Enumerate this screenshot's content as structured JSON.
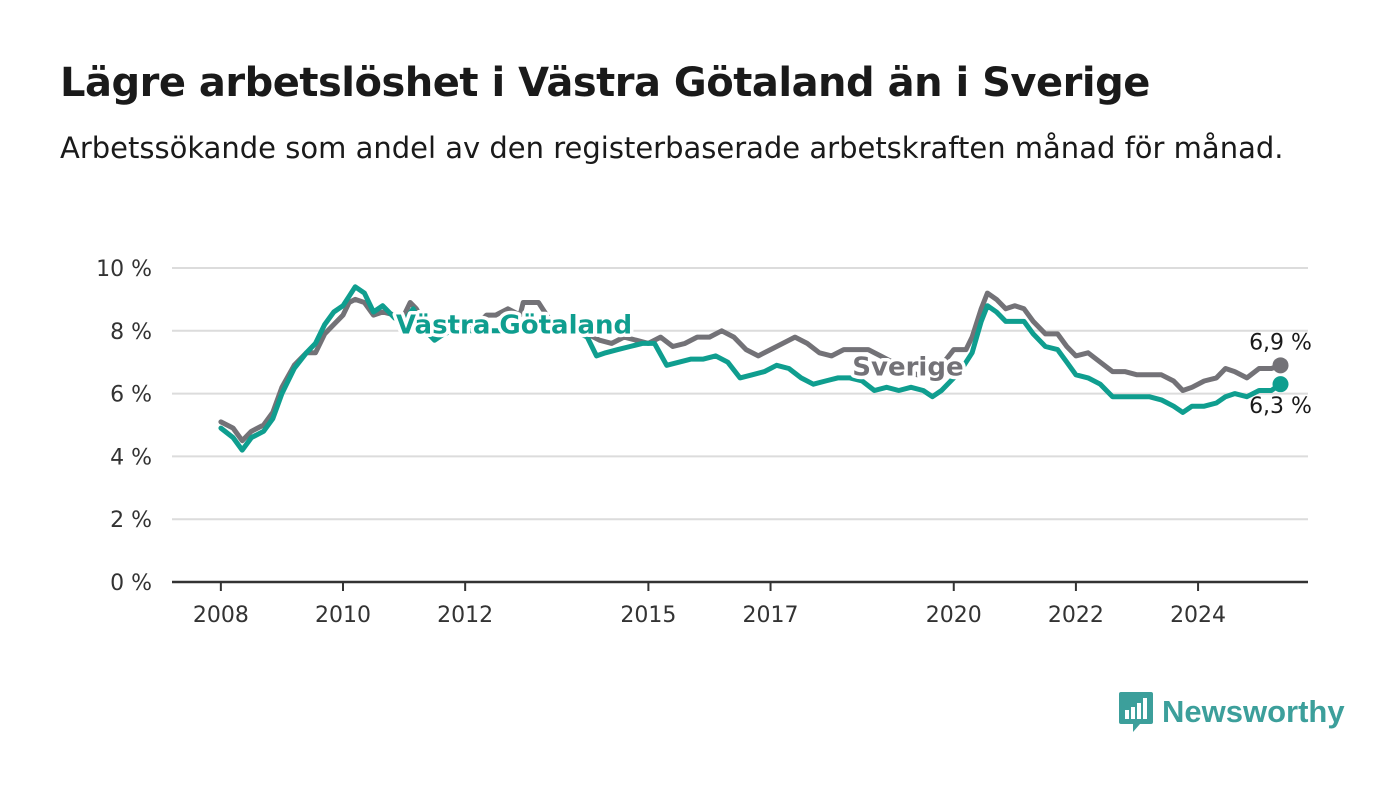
{
  "title": "Lägre arbetslöshet i Västra Götaland än i Sverige",
  "subtitle": "Arbetssökande som andel av den registerbaserade arbetskraften månad för månad.",
  "brand": {
    "name": "Newsworthy",
    "icon": "chart-speech-bubble-icon",
    "color": "#3c9f9b"
  },
  "chart_data": {
    "type": "line",
    "y_ticks": [
      "0 %",
      "2 %",
      "4 %",
      "6 %",
      "8 %",
      "10 %"
    ],
    "x_ticks": [
      {
        "label": "2008",
        "year": 2008
      },
      {
        "label": "2010",
        "year": 2010
      },
      {
        "label": "2012",
        "year": 2012
      },
      {
        "label": "2015",
        "year": 2015
      },
      {
        "label": "2017",
        "year": 2017
      },
      {
        "label": "2020",
        "year": 2020
      },
      {
        "label": "2022",
        "year": 2022
      },
      {
        "label": "2024",
        "year": 2024
      }
    ],
    "ylim": [
      0,
      10
    ],
    "xlim": [
      2007.2,
      2025.8
    ],
    "grid": true,
    "series": [
      {
        "name": "Sverige",
        "color": "#737277",
        "end_label": "6,9 %",
        "points": [
          [
            2008.0,
            5.1
          ],
          [
            2008.2,
            4.9
          ],
          [
            2008.35,
            4.5
          ],
          [
            2008.5,
            4.8
          ],
          [
            2008.7,
            5.0
          ],
          [
            2008.85,
            5.4
          ],
          [
            2009.0,
            6.2
          ],
          [
            2009.2,
            6.9
          ],
          [
            2009.4,
            7.3
          ],
          [
            2009.55,
            7.3
          ],
          [
            2009.7,
            7.9
          ],
          [
            2009.85,
            8.2
          ],
          [
            2010.0,
            8.5
          ],
          [
            2010.1,
            8.9
          ],
          [
            2010.2,
            9.0
          ],
          [
            2010.35,
            8.9
          ],
          [
            2010.5,
            8.5
          ],
          [
            2010.65,
            8.6
          ],
          [
            2010.85,
            8.5
          ],
          [
            2011.0,
            8.5
          ],
          [
            2011.1,
            8.9
          ],
          [
            2011.2,
            8.7
          ],
          [
            2011.35,
            8.2
          ],
          [
            2011.5,
            7.8
          ],
          [
            2011.65,
            8.2
          ],
          [
            2011.8,
            8.2
          ],
          [
            2012.2,
            8.2
          ],
          [
            2012.35,
            8.5
          ],
          [
            2012.5,
            8.5
          ],
          [
            2012.7,
            8.7
          ],
          [
            2012.9,
            8.5
          ],
          [
            2012.95,
            8.9
          ],
          [
            2013.2,
            8.9
          ],
          [
            2013.4,
            8.3
          ],
          [
            2013.6,
            8.1
          ],
          [
            2013.8,
            8.0
          ],
          [
            2014.0,
            7.9
          ],
          [
            2014.2,
            7.7
          ],
          [
            2014.4,
            7.6
          ],
          [
            2014.6,
            7.8
          ],
          [
            2014.8,
            7.7
          ],
          [
            2015.0,
            7.6
          ],
          [
            2015.2,
            7.8
          ],
          [
            2015.4,
            7.5
          ],
          [
            2015.6,
            7.6
          ],
          [
            2015.8,
            7.8
          ],
          [
            2016.0,
            7.8
          ],
          [
            2016.2,
            8.0
          ],
          [
            2016.4,
            7.8
          ],
          [
            2016.6,
            7.4
          ],
          [
            2016.8,
            7.2
          ],
          [
            2017.0,
            7.4
          ],
          [
            2017.2,
            7.6
          ],
          [
            2017.4,
            7.8
          ],
          [
            2017.6,
            7.6
          ],
          [
            2017.8,
            7.3
          ],
          [
            2018.0,
            7.2
          ],
          [
            2018.2,
            7.4
          ],
          [
            2018.4,
            7.4
          ],
          [
            2018.6,
            7.4
          ],
          [
            2018.8,
            7.2
          ],
          [
            2019.2,
            6.8
          ],
          [
            2019.4,
            6.6
          ],
          [
            2019.6,
            6.6
          ],
          [
            2019.8,
            6.9
          ],
          [
            2020.0,
            7.4
          ],
          [
            2020.2,
            7.4
          ],
          [
            2020.3,
            7.8
          ],
          [
            2020.45,
            8.7
          ],
          [
            2020.55,
            9.2
          ],
          [
            2020.7,
            9.0
          ],
          [
            2020.85,
            8.7
          ],
          [
            2021.0,
            8.8
          ],
          [
            2021.15,
            8.7
          ],
          [
            2021.3,
            8.3
          ],
          [
            2021.5,
            7.9
          ],
          [
            2021.7,
            7.9
          ],
          [
            2021.85,
            7.5
          ],
          [
            2022.0,
            7.2
          ],
          [
            2022.2,
            7.3
          ],
          [
            2022.4,
            7.0
          ],
          [
            2022.6,
            6.7
          ],
          [
            2022.8,
            6.7
          ],
          [
            2023.0,
            6.6
          ],
          [
            2023.2,
            6.6
          ],
          [
            2023.4,
            6.6
          ],
          [
            2023.6,
            6.4
          ],
          [
            2023.75,
            6.1
          ],
          [
            2023.9,
            6.2
          ],
          [
            2024.1,
            6.4
          ],
          [
            2024.3,
            6.5
          ],
          [
            2024.45,
            6.8
          ],
          [
            2024.6,
            6.7
          ],
          [
            2024.8,
            6.5
          ],
          [
            2025.0,
            6.8
          ],
          [
            2025.2,
            6.8
          ],
          [
            2025.35,
            6.9
          ]
        ]
      },
      {
        "name": "Västra Götaland",
        "color": "#0f9e8f",
        "end_label": "6,3 %",
        "points": [
          [
            2008.0,
            4.9
          ],
          [
            2008.2,
            4.6
          ],
          [
            2008.35,
            4.2
          ],
          [
            2008.5,
            4.6
          ],
          [
            2008.7,
            4.8
          ],
          [
            2008.85,
            5.2
          ],
          [
            2009.0,
            6.0
          ],
          [
            2009.2,
            6.8
          ],
          [
            2009.4,
            7.3
          ],
          [
            2009.55,
            7.6
          ],
          [
            2009.7,
            8.2
          ],
          [
            2009.85,
            8.6
          ],
          [
            2010.0,
            8.8
          ],
          [
            2010.1,
            9.1
          ],
          [
            2010.2,
            9.4
          ],
          [
            2010.35,
            9.2
          ],
          [
            2010.5,
            8.6
          ],
          [
            2010.65,
            8.8
          ],
          [
            2010.85,
            8.4
          ],
          [
            2011.0,
            8.3
          ],
          [
            2011.15,
            8.7
          ],
          [
            2011.3,
            8.1
          ],
          [
            2011.5,
            7.7
          ],
          [
            2011.65,
            7.9
          ],
          [
            2011.8,
            8.0
          ],
          [
            2013.8,
            8.0
          ],
          [
            2014.0,
            7.8
          ],
          [
            2014.15,
            7.2
          ],
          [
            2014.3,
            7.3
          ],
          [
            2014.5,
            7.4
          ],
          [
            2014.7,
            7.5
          ],
          [
            2014.9,
            7.6
          ],
          [
            2015.1,
            7.6
          ],
          [
            2015.3,
            6.9
          ],
          [
            2015.5,
            7.0
          ],
          [
            2015.7,
            7.1
          ],
          [
            2015.9,
            7.1
          ],
          [
            2016.1,
            7.2
          ],
          [
            2016.3,
            7.0
          ],
          [
            2016.5,
            6.5
          ],
          [
            2016.7,
            6.6
          ],
          [
            2016.9,
            6.7
          ],
          [
            2017.1,
            6.9
          ],
          [
            2017.3,
            6.8
          ],
          [
            2017.5,
            6.5
          ],
          [
            2017.7,
            6.3
          ],
          [
            2017.9,
            6.4
          ],
          [
            2018.1,
            6.5
          ],
          [
            2018.3,
            6.5
          ],
          [
            2018.5,
            6.4
          ],
          [
            2018.7,
            6.1
          ],
          [
            2018.9,
            6.2
          ],
          [
            2019.1,
            6.1
          ],
          [
            2019.3,
            6.2
          ],
          [
            2019.5,
            6.1
          ],
          [
            2019.65,
            5.9
          ],
          [
            2019.8,
            6.1
          ],
          [
            2020.1,
            6.7
          ],
          [
            2020.3,
            7.3
          ],
          [
            2020.45,
            8.3
          ],
          [
            2020.55,
            8.8
          ],
          [
            2020.7,
            8.6
          ],
          [
            2020.85,
            8.3
          ],
          [
            2021.0,
            8.3
          ],
          [
            2021.15,
            8.3
          ],
          [
            2021.3,
            7.9
          ],
          [
            2021.5,
            7.5
          ],
          [
            2021.7,
            7.4
          ],
          [
            2021.85,
            7.0
          ],
          [
            2022.0,
            6.6
          ],
          [
            2022.2,
            6.5
          ],
          [
            2022.4,
            6.3
          ],
          [
            2022.6,
            5.9
          ],
          [
            2022.8,
            5.9
          ],
          [
            2023.0,
            5.9
          ],
          [
            2023.2,
            5.9
          ],
          [
            2023.4,
            5.8
          ],
          [
            2023.6,
            5.6
          ],
          [
            2023.75,
            5.4
          ],
          [
            2023.9,
            5.6
          ],
          [
            2024.1,
            5.6
          ],
          [
            2024.3,
            5.7
          ],
          [
            2024.45,
            5.9
          ],
          [
            2024.6,
            6.0
          ],
          [
            2024.8,
            5.9
          ],
          [
            2025.0,
            6.1
          ],
          [
            2025.2,
            6.1
          ],
          [
            2025.35,
            6.3
          ]
        ]
      }
    ]
  }
}
